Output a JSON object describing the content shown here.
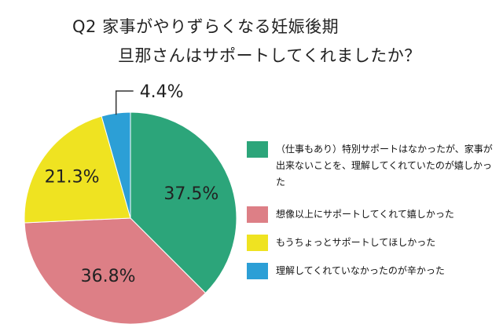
{
  "title": {
    "line1": "Q2 家事がやりずらくなる妊娠後期",
    "line2": "旦那さんはサポートしてくれましたか？"
  },
  "chart_data": {
    "type": "pie",
    "title": "Q2 家事がやりずらくなる妊娠後期 旦那さんはサポートしてくれましたか？",
    "start_angle_deg": 0,
    "direction": "clockwise",
    "slices": [
      {
        "name": "（仕事もあり）特別サポートはなかったが、家事が出来ないことを、理解してくれていたのが嬉しかった",
        "value": 37.5,
        "label": "37.5%",
        "color": "#2ca57a"
      },
      {
        "name": "想像以上にサポートしてくれて嬉しかった",
        "value": 36.8,
        "label": "36.8%",
        "color": "#dd7f86"
      },
      {
        "name": "もうちょっとサポートしてほしかった",
        "value": 21.3,
        "label": "21.3%",
        "color": "#efe321"
      },
      {
        "name": "理解してくれていなかったのが辛かった",
        "value": 4.4,
        "label": "4.4%",
        "color": "#2c9fd6"
      }
    ],
    "legend_position": "right"
  },
  "legend": {
    "items": [
      {
        "color": "#2ca57a",
        "label": "（仕事もあり）特別サポートはなかったが、家事が出来ないことを、理解してくれていたのが嬉しかった"
      },
      {
        "color": "#dd7f86",
        "label": "想像以上にサポートしてくれて嬉しかった"
      },
      {
        "color": "#efe321",
        "label": "もうちょっとサポートしてほしかった"
      },
      {
        "color": "#2c9fd6",
        "label": "理解してくれていなかったのが辛かった"
      }
    ]
  }
}
